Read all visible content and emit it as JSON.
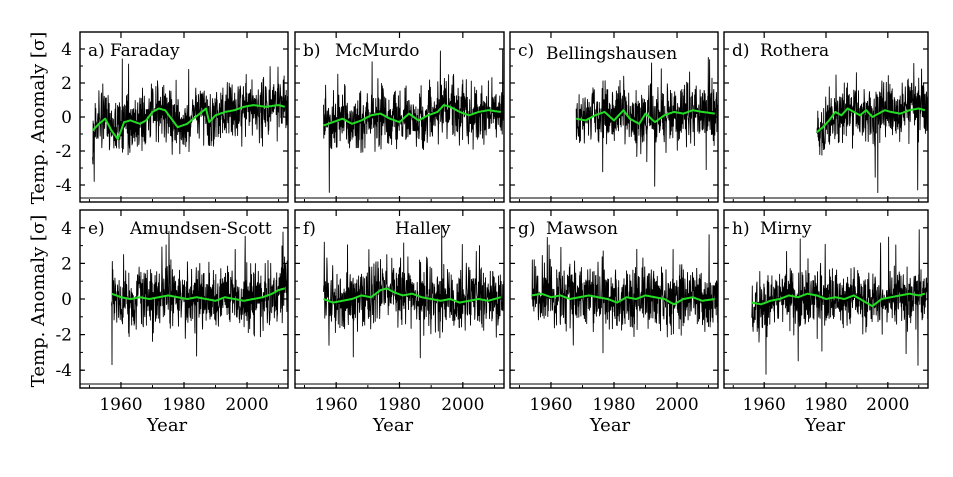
{
  "figure": {
    "ylabel": "Temp. Anomaly [σ]",
    "xlabel": "Year",
    "colors": {
      "raw": "#000000",
      "smooth": "#22dd22"
    }
  },
  "chart_data": {
    "type": "line",
    "x_range": [
      1947,
      2013
    ],
    "ylim": [
      -5,
      5
    ],
    "xticks": [
      1960,
      1980,
      2000
    ],
    "yticks": [
      -4,
      -2,
      0,
      2,
      4
    ],
    "series_types": [
      "monthly anomaly",
      "smoothed"
    ],
    "panels": [
      {
        "label": "a)",
        "station": "Faraday",
        "start": 1951,
        "end": 2012,
        "smooth": [
          [
            1951,
            -0.8
          ],
          [
            1953,
            -0.4
          ],
          [
            1955,
            -0.1
          ],
          [
            1957,
            -0.8
          ],
          [
            1959,
            -1.3
          ],
          [
            1961,
            -0.3
          ],
          [
            1963,
            -0.2
          ],
          [
            1966,
            -0.4
          ],
          [
            1968,
            -0.2
          ],
          [
            1970,
            0.3
          ],
          [
            1972,
            0.5
          ],
          [
            1974,
            0.4
          ],
          [
            1976,
            -0.1
          ],
          [
            1978,
            -0.6
          ],
          [
            1981,
            -0.4
          ],
          [
            1983,
            -0.1
          ],
          [
            1985,
            0.2
          ],
          [
            1987,
            0.5
          ],
          [
            1988,
            -0.3
          ],
          [
            1990,
            0.1
          ],
          [
            1993,
            0.3
          ],
          [
            1996,
            0.4
          ],
          [
            1999,
            0.6
          ],
          [
            2002,
            0.7
          ],
          [
            2006,
            0.6
          ],
          [
            2010,
            0.7
          ],
          [
            2012,
            0.6
          ]
        ]
      },
      {
        "label": "b)",
        "station": "McMurdo",
        "start": 1956,
        "end": 2012,
        "smooth": [
          [
            1956,
            -0.5
          ],
          [
            1959,
            -0.3
          ],
          [
            1962,
            -0.1
          ],
          [
            1965,
            -0.4
          ],
          [
            1968,
            -0.2
          ],
          [
            1971,
            0.1
          ],
          [
            1974,
            0.2
          ],
          [
            1977,
            -0.1
          ],
          [
            1980,
            -0.3
          ],
          [
            1983,
            0.2
          ],
          [
            1986,
            -0.2
          ],
          [
            1989,
            0.1
          ],
          [
            1992,
            0.3
          ],
          [
            1994,
            0.7
          ],
          [
            1996,
            0.6
          ],
          [
            1999,
            0.3
          ],
          [
            2002,
            0.1
          ],
          [
            2005,
            0.3
          ],
          [
            2008,
            0.4
          ],
          [
            2012,
            0.3
          ]
        ]
      },
      {
        "label": "c)",
        "station": "Bellingshausen",
        "start": 1968,
        "end": 2012,
        "smooth": [
          [
            1968,
            -0.1
          ],
          [
            1971,
            -0.2
          ],
          [
            1974,
            0.1
          ],
          [
            1977,
            0.3
          ],
          [
            1980,
            -0.2
          ],
          [
            1983,
            0.4
          ],
          [
            1985,
            -0.1
          ],
          [
            1988,
            -0.4
          ],
          [
            1990,
            0.2
          ],
          [
            1993,
            -0.3
          ],
          [
            1996,
            0.1
          ],
          [
            1999,
            0.3
          ],
          [
            2002,
            0.2
          ],
          [
            2005,
            0.4
          ],
          [
            2008,
            0.3
          ],
          [
            2012,
            0.2
          ]
        ]
      },
      {
        "label": "d)",
        "station": "Rothera",
        "start": 1977,
        "end": 2012,
        "smooth": [
          [
            1977,
            -0.9
          ],
          [
            1979,
            -0.6
          ],
          [
            1981,
            -0.2
          ],
          [
            1983,
            0.3
          ],
          [
            1985,
            0.1
          ],
          [
            1987,
            0.5
          ],
          [
            1989,
            0.3
          ],
          [
            1991,
            0.1
          ],
          [
            1993,
            0.4
          ],
          [
            1995,
            0.0
          ],
          [
            1997,
            0.2
          ],
          [
            1999,
            0.4
          ],
          [
            2001,
            0.3
          ],
          [
            2004,
            0.2
          ],
          [
            2007,
            0.4
          ],
          [
            2010,
            0.5
          ],
          [
            2012,
            0.4
          ]
        ]
      },
      {
        "label": "e)",
        "station": "Amundsen-Scott",
        "start": 1957,
        "end": 2012,
        "smooth": [
          [
            1957,
            0.3
          ],
          [
            1960,
            0.1
          ],
          [
            1963,
            0.0
          ],
          [
            1966,
            0.1
          ],
          [
            1969,
            0.0
          ],
          [
            1972,
            0.1
          ],
          [
            1975,
            0.2
          ],
          [
            1978,
            0.1
          ],
          [
            1981,
            0.0
          ],
          [
            1984,
            0.1
          ],
          [
            1987,
            0.0
          ],
          [
            1990,
            -0.1
          ],
          [
            1993,
            0.1
          ],
          [
            1996,
            0.0
          ],
          [
            1999,
            -0.1
          ],
          [
            2002,
            0.0
          ],
          [
            2005,
            0.1
          ],
          [
            2008,
            0.3
          ],
          [
            2010,
            0.5
          ],
          [
            2012,
            0.6
          ]
        ]
      },
      {
        "label": "f)",
        "station": "Halley",
        "start": 1956,
        "end": 2012,
        "smooth": [
          [
            1956,
            0.0
          ],
          [
            1959,
            -0.2
          ],
          [
            1962,
            -0.1
          ],
          [
            1965,
            0.0
          ],
          [
            1968,
            0.2
          ],
          [
            1971,
            0.1
          ],
          [
            1974,
            0.5
          ],
          [
            1976,
            0.6
          ],
          [
            1978,
            0.4
          ],
          [
            1981,
            0.2
          ],
          [
            1984,
            0.3
          ],
          [
            1987,
            0.1
          ],
          [
            1990,
            0.0
          ],
          [
            1993,
            -0.1
          ],
          [
            1996,
            0.0
          ],
          [
            1999,
            -0.2
          ],
          [
            2002,
            -0.1
          ],
          [
            2005,
            0.0
          ],
          [
            2008,
            -0.1
          ],
          [
            2012,
            0.1
          ]
        ]
      },
      {
        "label": "g)",
        "station": "Mawson",
        "start": 1954,
        "end": 2012,
        "smooth": [
          [
            1954,
            0.2
          ],
          [
            1957,
            0.3
          ],
          [
            1960,
            0.1
          ],
          [
            1963,
            0.2
          ],
          [
            1966,
            0.0
          ],
          [
            1969,
            0.1
          ],
          [
            1972,
            0.2
          ],
          [
            1975,
            0.1
          ],
          [
            1978,
            0.0
          ],
          [
            1981,
            -0.2
          ],
          [
            1984,
            0.1
          ],
          [
            1987,
            0.0
          ],
          [
            1990,
            0.2
          ],
          [
            1993,
            0.1
          ],
          [
            1996,
            0.0
          ],
          [
            1999,
            -0.3
          ],
          [
            2002,
            0.0
          ],
          [
            2005,
            0.1
          ],
          [
            2008,
            -0.1
          ],
          [
            2012,
            0.0
          ]
        ]
      },
      {
        "label": "h)",
        "station": "Mirny",
        "start": 1956,
        "end": 2012,
        "smooth": [
          [
            1956,
            -0.2
          ],
          [
            1959,
            -0.3
          ],
          [
            1962,
            -0.1
          ],
          [
            1965,
            0.0
          ],
          [
            1968,
            0.2
          ],
          [
            1971,
            0.1
          ],
          [
            1974,
            0.3
          ],
          [
            1977,
            0.2
          ],
          [
            1980,
            0.0
          ],
          [
            1983,
            0.1
          ],
          [
            1986,
            0.0
          ],
          [
            1989,
            0.2
          ],
          [
            1992,
            -0.1
          ],
          [
            1995,
            -0.4
          ],
          [
            1998,
            0.0
          ],
          [
            2001,
            0.1
          ],
          [
            2004,
            0.2
          ],
          [
            2007,
            0.3
          ],
          [
            2010,
            0.2
          ],
          [
            2012,
            0.3
          ]
        ]
      }
    ]
  }
}
